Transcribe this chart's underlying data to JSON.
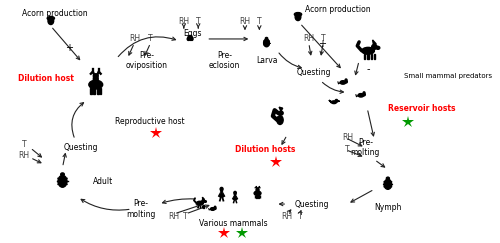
{
  "bg_color": "#ffffff",
  "text_color": "#000000",
  "red_color": "#ff0000",
  "green_color": "#009900",
  "arrow_color": "#222222",
  "labels": {
    "acorn_left": "Acorn production",
    "acorn_right": "Acorn production",
    "dilution_host_left": "Dilution host",
    "reproductive_host": "Reproductive host",
    "pre_oviposition": "Pre-\noviposition",
    "eggs": "Eggs",
    "pre_eclosion": "Pre-\neclosion",
    "larva": "Larva",
    "questing_top": "Questing",
    "small_mammal_predators": "Small mammal predators",
    "reservoir_hosts": "Reservoir hosts",
    "dilution_hosts_mid": "Dilution hosts",
    "pre_molting_right": "Pre-\nmolting",
    "nymph": "Nymph",
    "questing_bottom": "Questing",
    "various_mammals": "Various mammals",
    "pre_molting_left": "Pre-\nmolting",
    "adult": "Adult",
    "questing_left": "Questing"
  }
}
